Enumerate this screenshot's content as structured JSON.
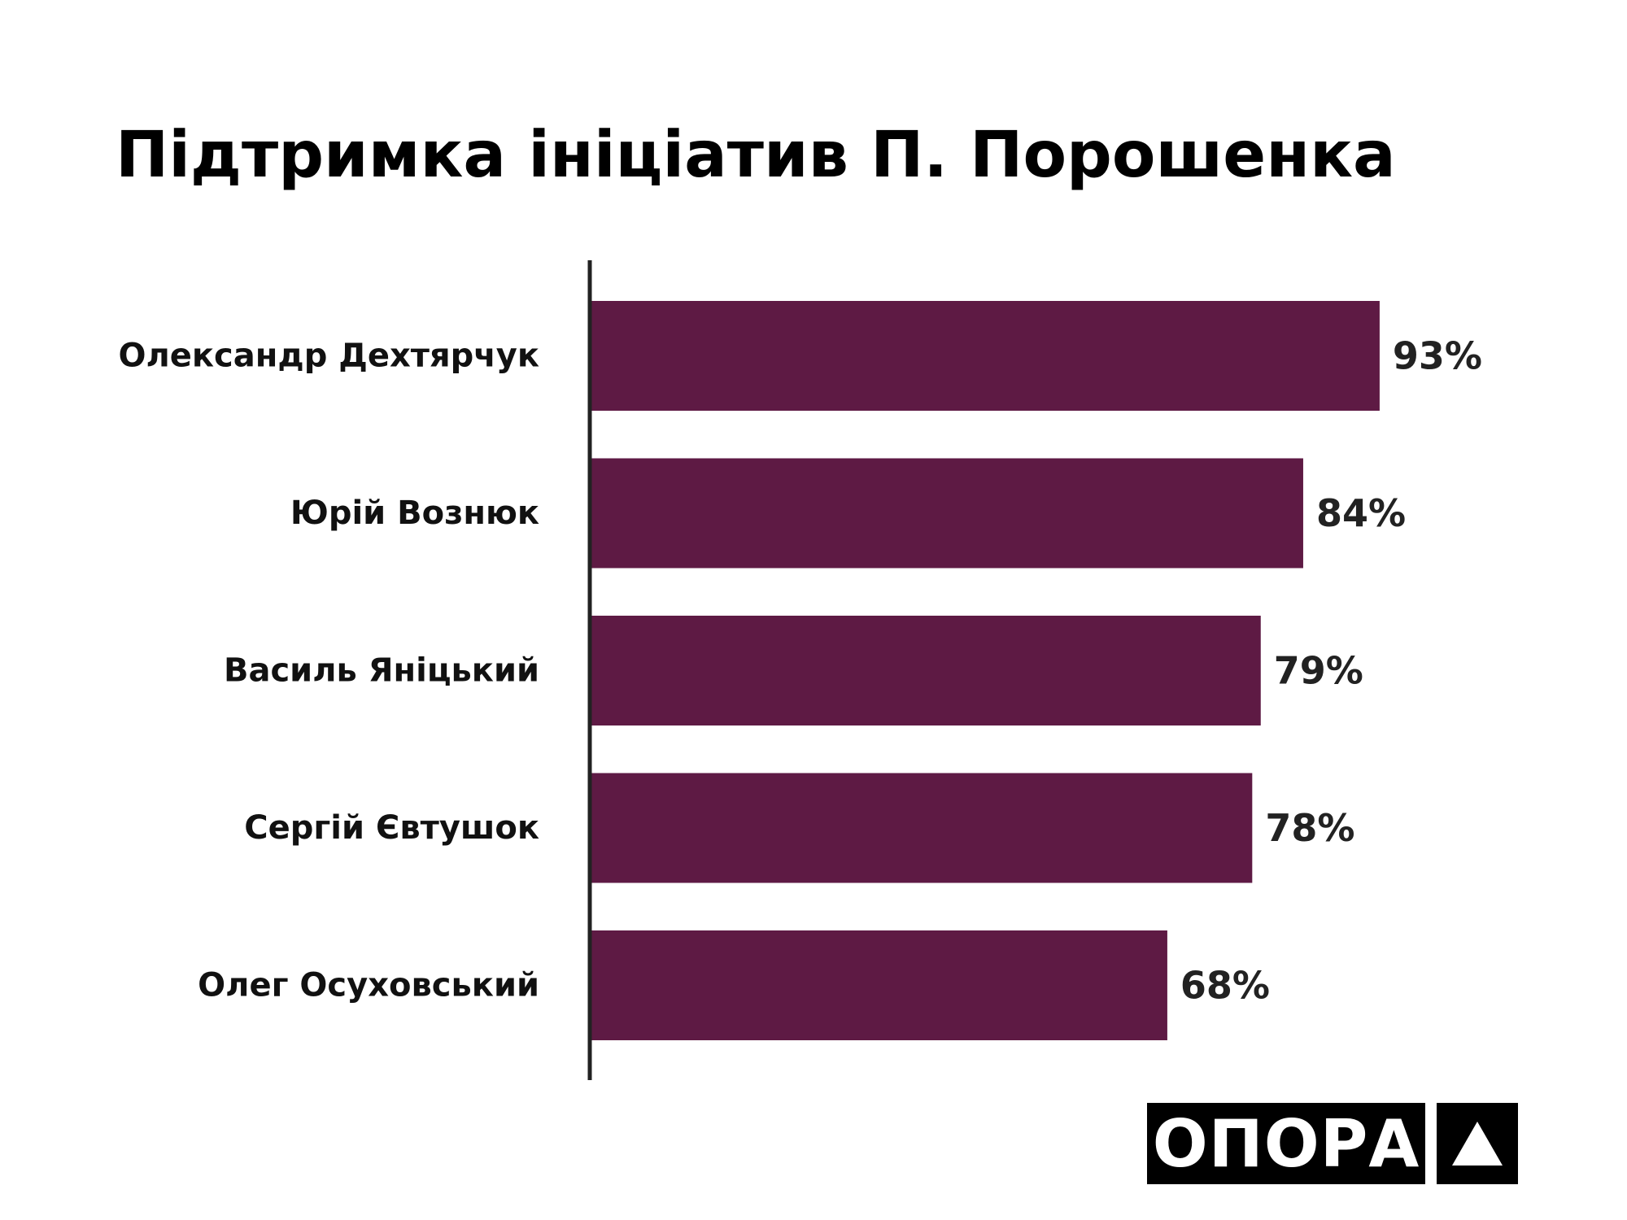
{
  "chart_data": {
    "type": "bar",
    "orientation": "horizontal",
    "title": "Підтримка ініціатив П. Порошенка",
    "categories": [
      "Олександр Дехтярчук",
      "Юрій Вознюк",
      "Василь Яніцький",
      "Сергій Євтушок",
      "Олег Осуховський"
    ],
    "values": [
      93,
      84,
      79,
      78,
      68
    ],
    "value_labels": [
      "93%",
      "84%",
      "79%",
      "78%",
      "68%"
    ],
    "xlim": [
      0,
      100
    ],
    "grid": false,
    "legend": "none",
    "bar_color": "#5e1a44"
  },
  "logo": {
    "text": "ОПОРА",
    "mark_icon": "triangle-up-icon"
  }
}
